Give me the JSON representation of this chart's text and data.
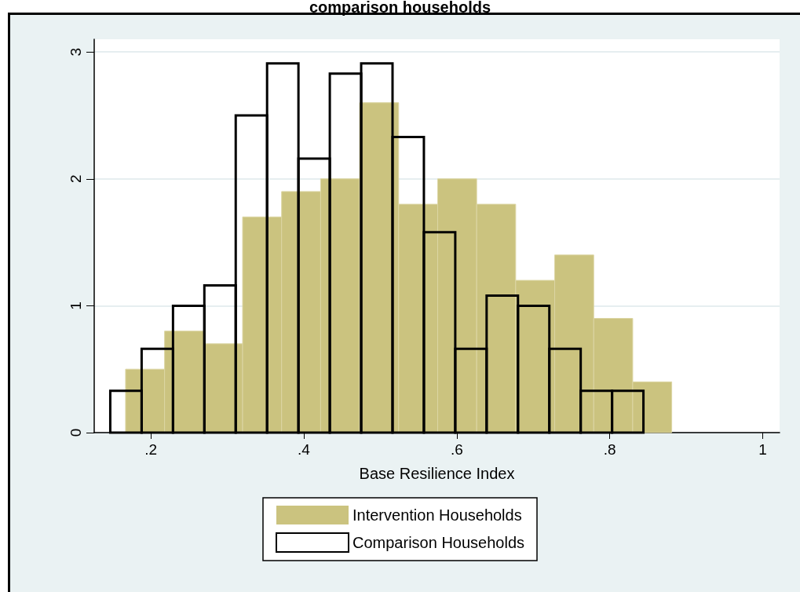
{
  "chart_data": {
    "type": "bar",
    "title": "comparison households",
    "xlabel": "Base Resilience Index",
    "series": [
      {
        "name": "Intervention Households",
        "color": "#cbc37f",
        "x": [
          0.1925,
          0.2435,
          0.2945,
          0.3455,
          0.3965,
          0.4475,
          0.4985,
          0.5495,
          0.6005,
          0.6515,
          0.7025,
          0.7535,
          0.8045,
          0.8555
        ],
        "values": [
          0.5,
          0.8,
          0.7,
          1.7,
          1.9,
          2.0,
          2.6,
          1.8,
          2.0,
          1.8,
          1.2,
          1.4,
          0.9,
          0.4
        ]
      },
      {
        "name": "Comparison Households",
        "color": "#000000",
        "x": [
          0.1675,
          0.2085,
          0.2495,
          0.2905,
          0.3315,
          0.3725,
          0.4135,
          0.4545,
          0.4955,
          0.5365,
          0.5775,
          0.6185,
          0.6595,
          0.7005,
          0.7415,
          0.7825,
          0.8235
        ],
        "values": [
          0.33,
          0.66,
          1.0,
          1.16,
          2.5,
          2.91,
          2.16,
          2.83,
          2.91,
          2.33,
          1.58,
          0.66,
          1.08,
          1.0,
          0.66,
          0.33,
          0.33
        ]
      }
    ],
    "xlim": [
      0.126,
      1.022
    ],
    "xticks": [
      {
        "value": 0.2,
        "label": ".2"
      },
      {
        "value": 0.4,
        "label": ".4"
      },
      {
        "value": 0.6,
        "label": ".6"
      },
      {
        "value": 0.8,
        "label": ".8"
      },
      1
    ],
    "ylim": [
      0,
      3.1
    ],
    "yticks": [
      0,
      1,
      2,
      3
    ],
    "grid": "y",
    "legend": "bottom"
  }
}
